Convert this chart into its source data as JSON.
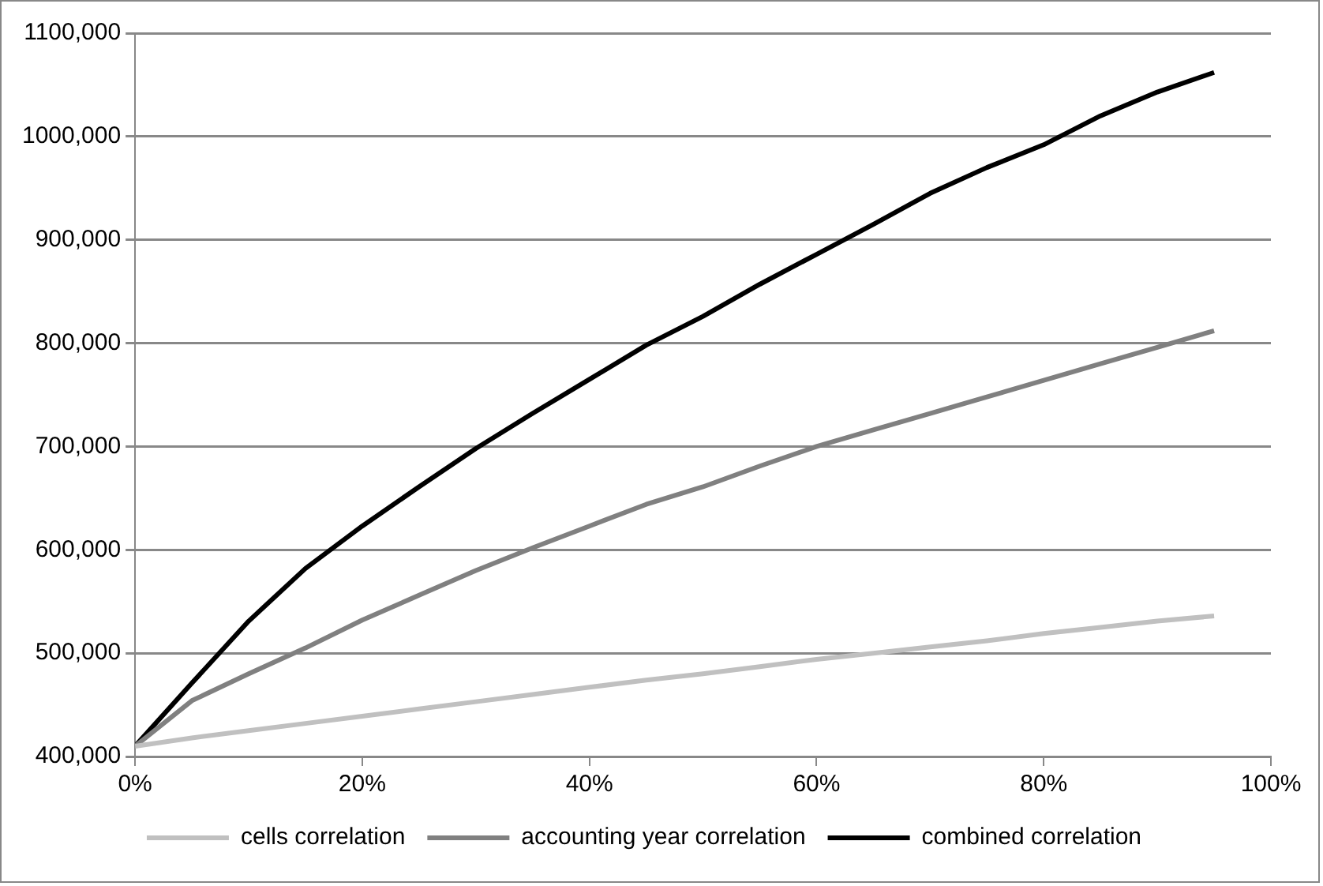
{
  "chart_data": {
    "type": "line",
    "x": [
      0,
      0.05,
      0.1,
      0.15,
      0.2,
      0.25,
      0.3,
      0.35,
      0.4,
      0.45,
      0.5,
      0.55,
      0.6,
      0.65,
      0.7,
      0.75,
      0.8,
      0.85,
      0.9,
      0.95
    ],
    "series": [
      {
        "name": "cells correlation",
        "color": "#c0c0c0",
        "values": [
          410000,
          418000,
          425000,
          432000,
          439000,
          446000,
          453000,
          460000,
          467000,
          474000,
          480000,
          487000,
          494000,
          500000,
          506000,
          512000,
          519000,
          525000,
          531000,
          536000
        ]
      },
      {
        "name": "accounting year correlation",
        "color": "#808080",
        "values": [
          410000,
          454000,
          480000,
          505000,
          532000,
          556000,
          580000,
          602000,
          623000,
          644000,
          661000,
          681000,
          700000,
          716000,
          732000,
          748000,
          764000,
          780000,
          796000,
          812000
        ]
      },
      {
        "name": "combined correlation",
        "color": "#000000",
        "values": [
          410000,
          471000,
          531000,
          582000,
          623000,
          661000,
          698000,
          732000,
          765000,
          798000,
          826000,
          857000,
          886000,
          915000,
          945000,
          970000,
          992000,
          1020000,
          1043000,
          1062000
        ]
      }
    ],
    "xlim": [
      0,
      1
    ],
    "xticks": [
      {
        "value": 0,
        "label": "0%"
      },
      {
        "value": 0.2,
        "label": "20%"
      },
      {
        "value": 0.4,
        "label": "40%"
      },
      {
        "value": 0.6,
        "label": "60%"
      },
      {
        "value": 0.8,
        "label": "80%"
      },
      {
        "value": 1,
        "label": "100%"
      }
    ],
    "ylim": [
      400000,
      1100000
    ],
    "yticks": [
      {
        "value": 400000,
        "label": "400,000"
      },
      {
        "value": 500000,
        "label": "500,000"
      },
      {
        "value": 600000,
        "label": "600,000"
      },
      {
        "value": 700000,
        "label": "700,000"
      },
      {
        "value": 800000,
        "label": "800,000"
      },
      {
        "value": 900000,
        "label": "900,000"
      },
      {
        "value": 1000000,
        "label": "1000,000"
      },
      {
        "value": 1100000,
        "label": "1100,000"
      }
    ],
    "grid": "y",
    "legend": "bottom",
    "marker": "none",
    "line_style": "solid"
  }
}
